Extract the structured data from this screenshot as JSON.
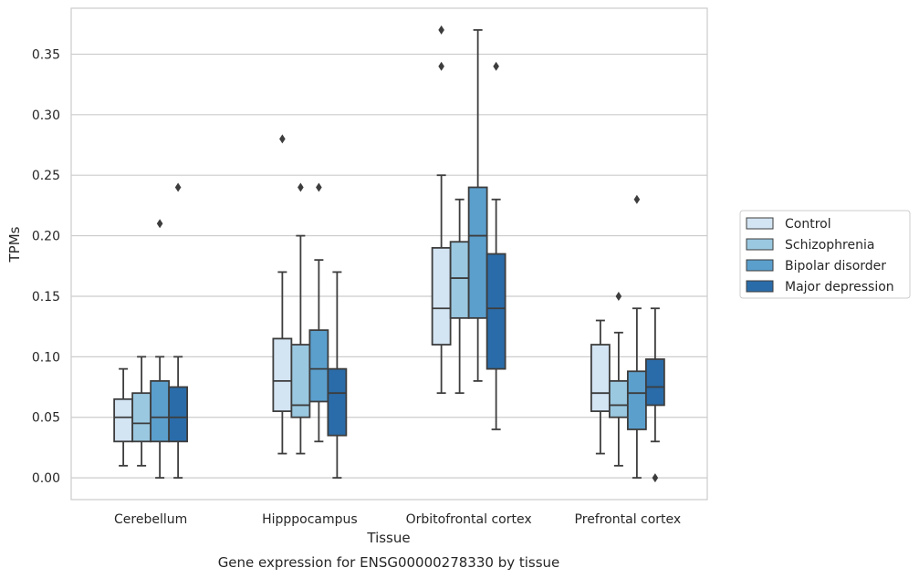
{
  "chart_data": {
    "type": "box",
    "title": "",
    "caption": "Gene expression for ENSG00000278330 by tissue",
    "xlabel": "Tissue",
    "ylabel": "TPMs",
    "ylim": [
      -0.018,
      0.388
    ],
    "yticks": [
      0.0,
      0.05,
      0.1,
      0.15,
      0.2,
      0.25,
      0.3,
      0.35
    ],
    "ytick_labels": [
      "0.00",
      "0.05",
      "0.10",
      "0.15",
      "0.20",
      "0.25",
      "0.30",
      "0.35"
    ],
    "grid": "horizontal",
    "legend_placement": "center-right",
    "categories": [
      "Cerebellum",
      "Hipppocampus",
      "Orbitofrontal cortex",
      "Prefrontal cortex"
    ],
    "series": [
      {
        "name": "Control",
        "color": "#d3e4f3",
        "boxes": [
          {
            "whisker_low": 0.01,
            "q1": 0.03,
            "median": 0.05,
            "q3": 0.065,
            "whisker_high": 0.09,
            "outliers": []
          },
          {
            "whisker_low": 0.02,
            "q1": 0.055,
            "median": 0.08,
            "q3": 0.115,
            "whisker_high": 0.17,
            "outliers": [
              0.28
            ]
          },
          {
            "whisker_low": 0.07,
            "q1": 0.11,
            "median": 0.14,
            "q3": 0.19,
            "whisker_high": 0.25,
            "outliers": []
          },
          {
            "whisker_low": 0.02,
            "q1": 0.055,
            "median": 0.07,
            "q3": 0.11,
            "whisker_high": 0.13,
            "outliers": []
          }
        ]
      },
      {
        "name": "Schizophrenia",
        "color": "#9ac8e0",
        "boxes": [
          {
            "whisker_low": 0.01,
            "q1": 0.03,
            "median": 0.045,
            "q3": 0.07,
            "whisker_high": 0.1,
            "outliers": []
          },
          {
            "whisker_low": 0.02,
            "q1": 0.05,
            "median": 0.06,
            "q3": 0.11,
            "whisker_high": 0.2,
            "outliers": [
              0.24
            ]
          },
          {
            "whisker_low": 0.07,
            "q1": 0.132,
            "median": 0.165,
            "q3": 0.195,
            "whisker_high": 0.23,
            "outliers": []
          },
          {
            "whisker_low": 0.01,
            "q1": 0.05,
            "median": 0.06,
            "q3": 0.08,
            "whisker_high": 0.12,
            "outliers": [
              0.15
            ]
          }
        ]
      },
      {
        "name": "Bipolar disorder",
        "color": "#5b9fcd",
        "boxes": [
          {
            "whisker_low": 0.0,
            "q1": 0.03,
            "median": 0.05,
            "q3": 0.08,
            "whisker_high": 0.1,
            "outliers": [
              0.21
            ]
          },
          {
            "whisker_low": 0.03,
            "q1": 0.063,
            "median": 0.09,
            "q3": 0.122,
            "whisker_high": 0.18,
            "outliers": [
              0.24
            ]
          },
          {
            "whisker_low": 0.08,
            "q1": 0.132,
            "median": 0.2,
            "q3": 0.24,
            "whisker_high": 0.37,
            "outliers": []
          },
          {
            "whisker_low": 0.0,
            "q1": 0.04,
            "median": 0.07,
            "q3": 0.088,
            "whisker_high": 0.14,
            "outliers": [
              0.23
            ]
          }
        ]
      },
      {
        "name": "Major depression",
        "color": "#2a6ca9",
        "boxes": [
          {
            "whisker_low": 0.0,
            "q1": 0.03,
            "median": 0.05,
            "q3": 0.075,
            "whisker_high": 0.1,
            "outliers": [
              0.24
            ]
          },
          {
            "whisker_low": 0.0,
            "q1": 0.035,
            "median": 0.07,
            "q3": 0.09,
            "whisker_high": 0.17,
            "outliers": []
          },
          {
            "whisker_low": 0.04,
            "q1": 0.09,
            "median": 0.14,
            "q3": 0.185,
            "whisker_high": 0.23,
            "outliers": [
              0.34,
              0.37,
              0.34
            ]
          },
          {
            "whisker_low": 0.03,
            "q1": 0.06,
            "median": 0.075,
            "q3": 0.098,
            "whisker_high": 0.14,
            "outliers": [
              0.0
            ]
          }
        ]
      }
    ],
    "outlier_overrides": [
      {
        "category": 2,
        "series": 1,
        "values": [
          0.37,
          0.34
        ]
      },
      {
        "category": 2,
        "series": 4,
        "values": [
          0.34
        ]
      }
    ]
  }
}
